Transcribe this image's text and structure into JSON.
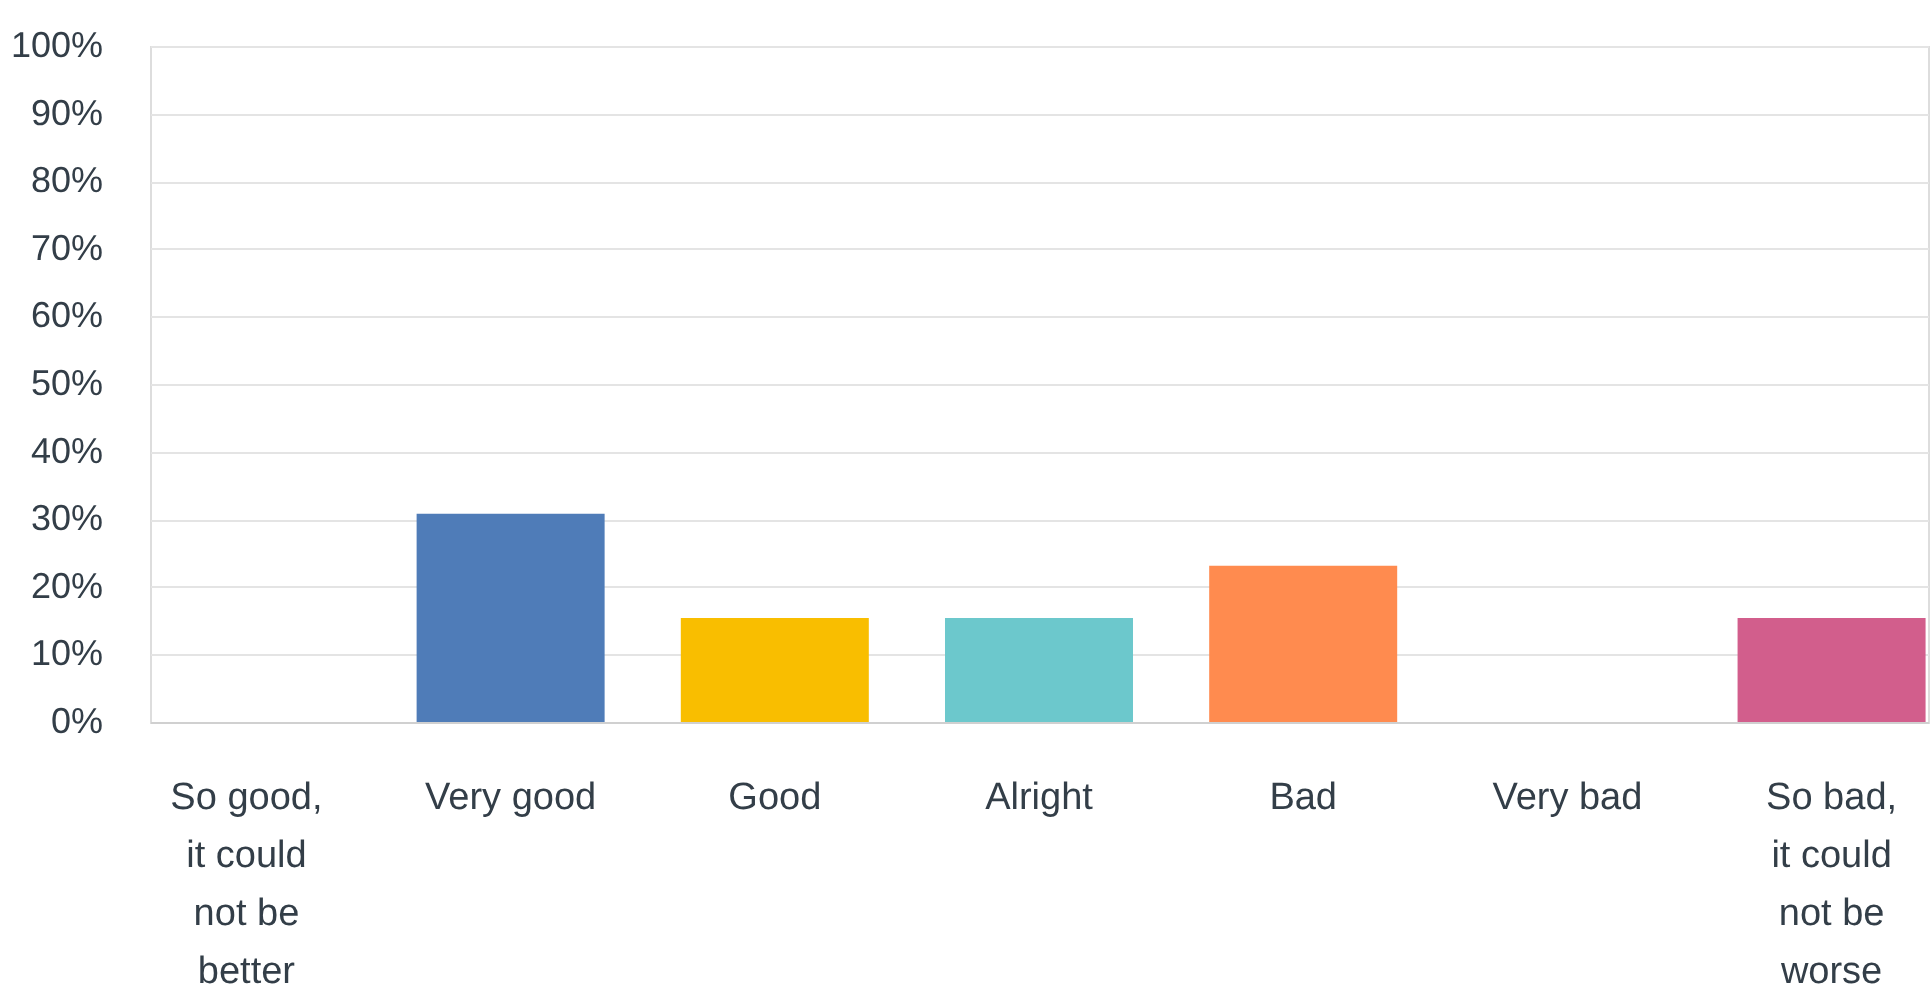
{
  "chart_data": {
    "type": "bar",
    "categories": [
      "So good, it could not be better",
      "Very good",
      "Good",
      "Alright",
      "Bad",
      "Very bad",
      "So bad, it could not be worse"
    ],
    "values": [
      0,
      30.8,
      15.4,
      15.4,
      23.1,
      0,
      15.4
    ],
    "colors": [
      "#4f7cb8",
      "#4f7cb8",
      "#f9be00",
      "#6cc8cc",
      "#ff8b4f",
      "#a4a4a4",
      "#d25e8c"
    ],
    "ylim": [
      0,
      100
    ],
    "yticks": [
      {
        "value": 0,
        "label": "0%"
      },
      {
        "value": 10,
        "label": "10%"
      },
      {
        "value": 20,
        "label": "20%"
      },
      {
        "value": 30,
        "label": "30%"
      },
      {
        "value": 40,
        "label": "40%"
      },
      {
        "value": 50,
        "label": "50%"
      },
      {
        "value": 60,
        "label": "60%"
      },
      {
        "value": 70,
        "label": "70%"
      },
      {
        "value": 80,
        "label": "80%"
      },
      {
        "value": 90,
        "label": "90%"
      },
      {
        "value": 100,
        "label": "100%"
      }
    ],
    "grid": "y"
  }
}
